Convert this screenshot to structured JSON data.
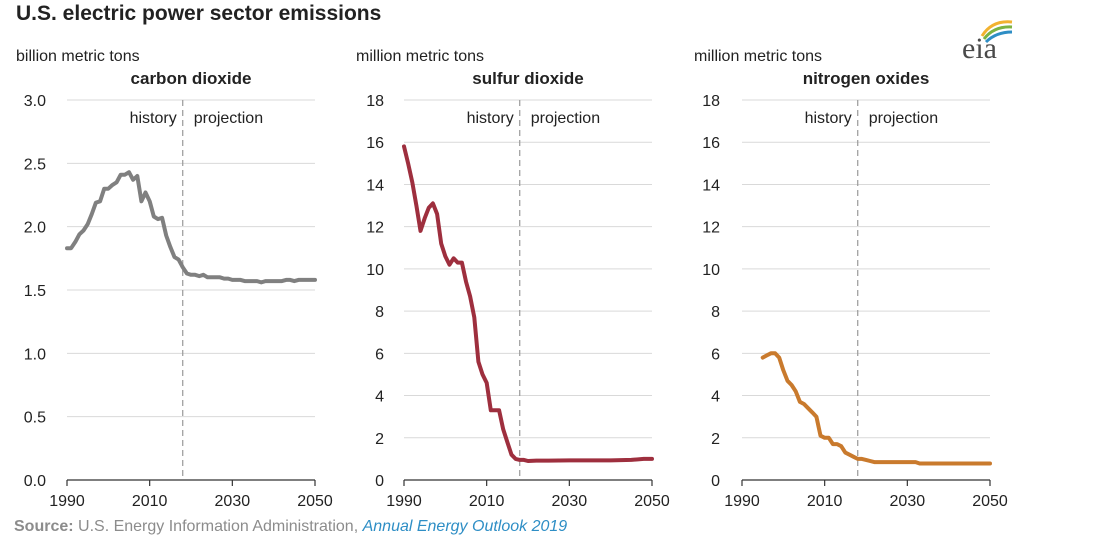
{
  "title": "U.S. electric power sector emissions",
  "logo_text": "eia",
  "source": {
    "label": "Source:",
    "text": " U.S. Energy Information Administration, ",
    "publication": "Annual Energy Outlook 2019"
  },
  "chart_data": [
    {
      "type": "line",
      "title": "carbon dioxide",
      "unit_label": "billion metric tons",
      "color": "#808080",
      "xlim": [
        1990,
        2050
      ],
      "ylim": [
        0,
        3.0
      ],
      "xticks": [
        1990,
        2010,
        2030,
        2050
      ],
      "yticks": [
        "0.0",
        "0.5",
        "1.0",
        "1.5",
        "2.0",
        "2.5",
        "3.0"
      ],
      "grid": true,
      "divider_x": 2018,
      "annotations": [
        "history",
        "projection"
      ],
      "x": [
        1990,
        1991,
        1992,
        1993,
        1994,
        1995,
        1996,
        1997,
        1998,
        1999,
        2000,
        2001,
        2002,
        2003,
        2004,
        2005,
        2006,
        2007,
        2008,
        2009,
        2010,
        2011,
        2012,
        2013,
        2014,
        2015,
        2016,
        2017,
        2018,
        2019,
        2020,
        2021,
        2022,
        2023,
        2024,
        2025,
        2026,
        2027,
        2028,
        2029,
        2030,
        2031,
        2032,
        2033,
        2034,
        2035,
        2036,
        2037,
        2038,
        2039,
        2040,
        2041,
        2042,
        2043,
        2044,
        2045,
        2046,
        2047,
        2048,
        2049,
        2050
      ],
      "values": [
        1.83,
        1.83,
        1.88,
        1.94,
        1.97,
        2.02,
        2.1,
        2.19,
        2.2,
        2.3,
        2.3,
        2.33,
        2.35,
        2.41,
        2.41,
        2.43,
        2.37,
        2.4,
        2.2,
        2.27,
        2.2,
        2.08,
        2.06,
        2.07,
        1.93,
        1.84,
        1.76,
        1.74,
        1.68,
        1.63,
        1.62,
        1.62,
        1.61,
        1.62,
        1.6,
        1.6,
        1.6,
        1.6,
        1.59,
        1.59,
        1.58,
        1.58,
        1.58,
        1.57,
        1.57,
        1.57,
        1.57,
        1.56,
        1.57,
        1.57,
        1.57,
        1.57,
        1.57,
        1.58,
        1.58,
        1.57,
        1.58,
        1.58,
        1.58,
        1.58,
        1.58
      ]
    },
    {
      "type": "line",
      "title": "sulfur dioxide",
      "unit_label": "million metric tons",
      "color": "#9e2f3e",
      "xlim": [
        1990,
        2050
      ],
      "ylim": [
        0,
        18
      ],
      "xticks": [
        1990,
        2010,
        2030,
        2050
      ],
      "yticks": [
        "0",
        "2",
        "4",
        "6",
        "8",
        "10",
        "12",
        "14",
        "16",
        "18"
      ],
      "grid": true,
      "divider_x": 2018,
      "annotations": [
        "history",
        "projection"
      ],
      "x": [
        1990,
        1991,
        1992,
        1993,
        1994,
        1995,
        1996,
        1997,
        1998,
        1999,
        2000,
        2001,
        2002,
        2003,
        2004,
        2005,
        2006,
        2007,
        2008,
        2009,
        2010,
        2011,
        2012,
        2013,
        2014,
        2015,
        2016,
        2017,
        2018,
        2019,
        2020,
        2022,
        2025,
        2030,
        2035,
        2040,
        2045,
        2048,
        2050
      ],
      "values": [
        15.8,
        15.0,
        14.1,
        13.0,
        11.8,
        12.4,
        12.9,
        13.1,
        12.6,
        11.2,
        10.6,
        10.2,
        10.5,
        10.3,
        10.3,
        9.4,
        8.7,
        7.7,
        5.6,
        5.0,
        4.6,
        3.3,
        3.3,
        3.3,
        2.4,
        1.8,
        1.2,
        1.0,
        0.95,
        0.95,
        0.9,
        0.92,
        0.92,
        0.93,
        0.93,
        0.93,
        0.95,
        1.0,
        1.0
      ]
    },
    {
      "type": "line",
      "title": "nitrogen oxides",
      "unit_label": "million metric tons",
      "color": "#c97a2d",
      "xlim": [
        1990,
        2050
      ],
      "ylim": [
        0,
        18
      ],
      "xticks": [
        1990,
        2010,
        2030,
        2050
      ],
      "yticks": [
        "0",
        "2",
        "4",
        "6",
        "8",
        "10",
        "12",
        "14",
        "16",
        "18"
      ],
      "grid": true,
      "divider_x": 2018,
      "annotations": [
        "history",
        "projection"
      ],
      "x": [
        1995,
        1996,
        1997,
        1998,
        1999,
        2000,
        2001,
        2002,
        2003,
        2004,
        2005,
        2006,
        2007,
        2008,
        2009,
        2010,
        2011,
        2012,
        2013,
        2014,
        2015,
        2016,
        2017,
        2018,
        2019,
        2020,
        2021,
        2022,
        2025,
        2030,
        2032,
        2033,
        2035,
        2040,
        2045,
        2050
      ],
      "values": [
        5.8,
        5.9,
        6.0,
        6.0,
        5.8,
        5.2,
        4.7,
        4.5,
        4.2,
        3.7,
        3.6,
        3.4,
        3.2,
        3.0,
        2.1,
        2.0,
        2.0,
        1.7,
        1.7,
        1.6,
        1.3,
        1.2,
        1.1,
        1.0,
        1.0,
        0.95,
        0.9,
        0.85,
        0.85,
        0.85,
        0.85,
        0.78,
        0.78,
        0.78,
        0.78,
        0.78
      ]
    }
  ]
}
